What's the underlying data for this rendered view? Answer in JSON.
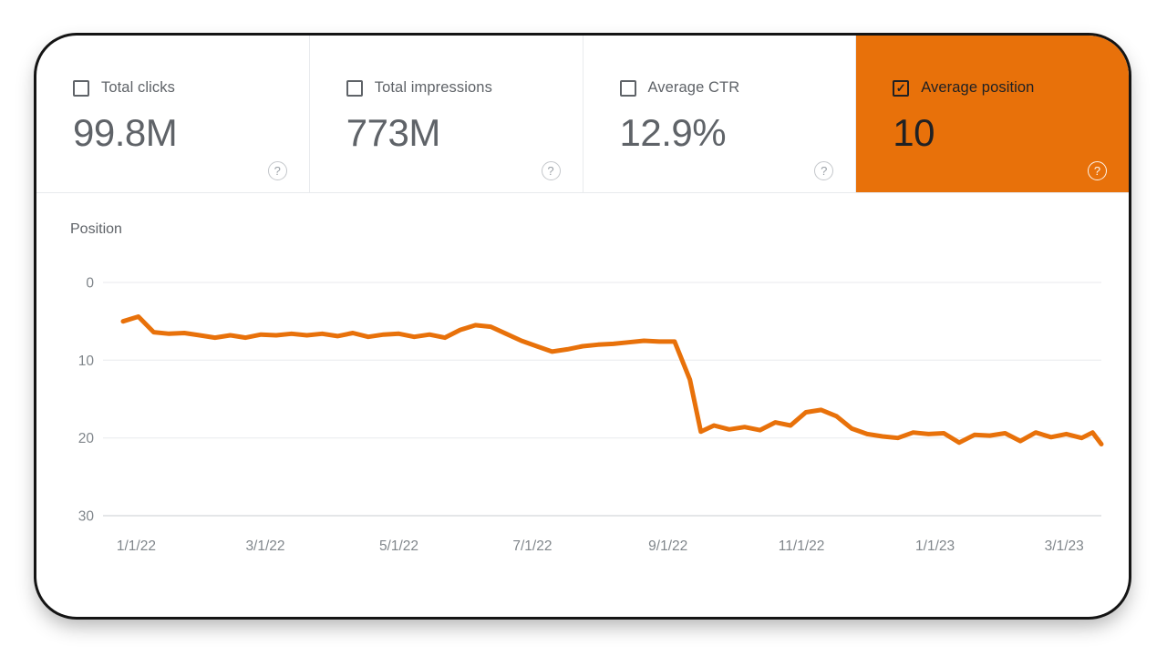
{
  "metric_cards": {
    "items": [
      {
        "label": "Total clicks",
        "value": "99.8M",
        "checked": false,
        "selected": false
      },
      {
        "label": "Total impressions",
        "value": "773M",
        "checked": false,
        "selected": false
      },
      {
        "label": "Average CTR",
        "value": "12.9%",
        "checked": false,
        "selected": false
      },
      {
        "label": "Average position",
        "value": "10",
        "checked": true,
        "selected": true
      }
    ]
  },
  "icons": {
    "help_glyph": "?",
    "check_glyph": "✓"
  },
  "colors": {
    "accent": "#e8710a",
    "grid": "#e8eaed",
    "axis_line": "#c9ccd0",
    "tick_text": "#80868b",
    "muted_text": "#5f6368",
    "selected_text": "#202124"
  },
  "chart_data": {
    "type": "line",
    "title": "Position",
    "ylabel": "Position",
    "y_ticks": [
      0,
      10,
      20,
      30
    ],
    "y_inverted": true,
    "ylim": [
      0,
      30
    ],
    "grid": true,
    "legend": "none",
    "x_ticks": [
      {
        "label": "1/1/22",
        "day": 0
      },
      {
        "label": "3/1/22",
        "day": 59
      },
      {
        "label": "5/1/22",
        "day": 120
      },
      {
        "label": "7/1/22",
        "day": 181
      },
      {
        "label": "9/1/22",
        "day": 243
      },
      {
        "label": "11/1/22",
        "day": 304
      },
      {
        "label": "1/1/23",
        "day": 365
      },
      {
        "label": "3/1/23",
        "day": 424
      }
    ],
    "x_domain_days": [
      -6,
      441
    ],
    "series": [
      {
        "name": "Average position",
        "color": "#e8710a",
        "points": [
          [
            -6,
            5.0
          ],
          [
            1,
            4.4
          ],
          [
            8,
            6.4
          ],
          [
            15,
            6.6
          ],
          [
            22,
            6.5
          ],
          [
            29,
            6.8
          ],
          [
            36,
            7.1
          ],
          [
            43,
            6.8
          ],
          [
            50,
            7.1
          ],
          [
            57,
            6.7
          ],
          [
            64,
            6.8
          ],
          [
            71,
            6.6
          ],
          [
            78,
            6.8
          ],
          [
            85,
            6.6
          ],
          [
            92,
            6.9
          ],
          [
            99,
            6.5
          ],
          [
            106,
            7.0
          ],
          [
            113,
            6.7
          ],
          [
            120,
            6.6
          ],
          [
            127,
            7.0
          ],
          [
            134,
            6.7
          ],
          [
            141,
            7.1
          ],
          [
            148,
            6.1
          ],
          [
            155,
            5.5
          ],
          [
            162,
            5.7
          ],
          [
            169,
            6.6
          ],
          [
            176,
            7.5
          ],
          [
            183,
            8.2
          ],
          [
            190,
            8.9
          ],
          [
            197,
            8.6
          ],
          [
            204,
            8.2
          ],
          [
            211,
            8.0
          ],
          [
            218,
            7.9
          ],
          [
            225,
            7.7
          ],
          [
            232,
            7.5
          ],
          [
            239,
            7.6
          ],
          [
            246,
            7.6
          ],
          [
            253,
            12.5
          ],
          [
            258,
            19.2
          ],
          [
            264,
            18.4
          ],
          [
            271,
            18.9
          ],
          [
            278,
            18.6
          ],
          [
            285,
            19.0
          ],
          [
            292,
            18.0
          ],
          [
            299,
            18.4
          ],
          [
            306,
            16.7
          ],
          [
            313,
            16.4
          ],
          [
            320,
            17.2
          ],
          [
            327,
            18.8
          ],
          [
            334,
            19.5
          ],
          [
            341,
            19.8
          ],
          [
            348,
            20.0
          ],
          [
            355,
            19.3
          ],
          [
            362,
            19.5
          ],
          [
            369,
            19.4
          ],
          [
            376,
            20.6
          ],
          [
            383,
            19.6
          ],
          [
            390,
            19.7
          ],
          [
            397,
            19.4
          ],
          [
            404,
            20.4
          ],
          [
            411,
            19.3
          ],
          [
            418,
            19.9
          ],
          [
            425,
            19.5
          ],
          [
            432,
            20.0
          ],
          [
            437,
            19.3
          ],
          [
            441,
            20.8
          ]
        ]
      }
    ]
  }
}
